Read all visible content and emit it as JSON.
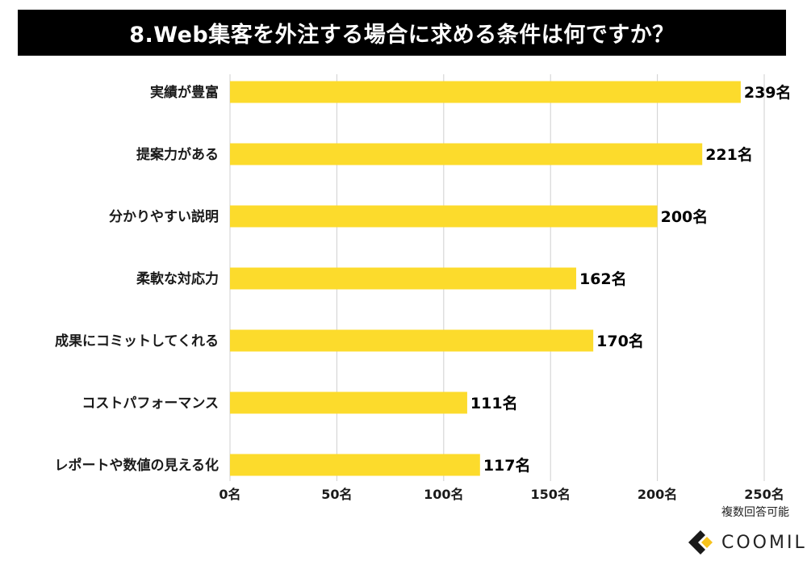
{
  "title": "8.Web集客を外注する場合に求める条件は何ですか？",
  "note": "複数回答可能",
  "brand": {
    "name": "COOMIL",
    "accent": "#f6c21c",
    "dark": "#1a1a1a"
  },
  "colors": {
    "bar": "#fcdb2c",
    "grid": "#cfcfcf",
    "title_bg": "#000000"
  },
  "chart_data": {
    "type": "bar",
    "orientation": "horizontal",
    "categories": [
      "実績が豊富",
      "提案力がある",
      "分かりやすい説明",
      "柔軟な対応力",
      "成果にコミットしてくれる",
      "コストパフォーマンス",
      "レポートや数値の見える化"
    ],
    "values": [
      239,
      221,
      200,
      162,
      170,
      111,
      117
    ],
    "value_labels": [
      "239名",
      "221名",
      "200名",
      "162名",
      "170名",
      "111名",
      "117名"
    ],
    "xlim": [
      0,
      250
    ],
    "ticks": [
      0,
      50,
      100,
      150,
      200,
      250
    ],
    "tick_labels": [
      "0名",
      "50名",
      "100名",
      "150名",
      "200名",
      "250名"
    ],
    "grid": true,
    "xlabel": "",
    "ylabel": ""
  }
}
